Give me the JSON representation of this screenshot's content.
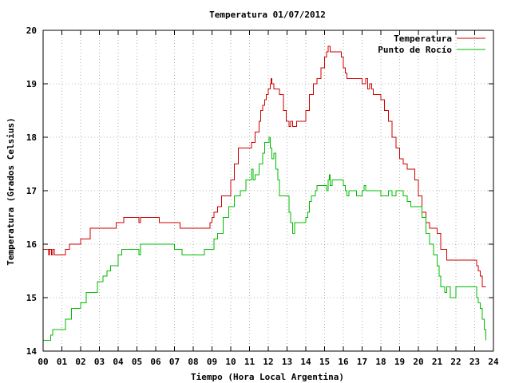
{
  "chart_data": {
    "type": "line",
    "title": "Temperatura 01/07/2012",
    "xlabel": "Tiempo (Hora Local Argentina)",
    "ylabel": "Temperatura (Grados Celsius)",
    "xlim": [
      0,
      24
    ],
    "ylim": [
      14,
      20
    ],
    "grid": true,
    "legend_position": "top-right",
    "x_ticks": [
      "00",
      "01",
      "02",
      "03",
      "04",
      "05",
      "06",
      "07",
      "08",
      "09",
      "10",
      "11",
      "12",
      "13",
      "14",
      "15",
      "16",
      "17",
      "18",
      "19",
      "20",
      "21",
      "22",
      "23",
      "24"
    ],
    "y_ticks": [
      "14",
      "15",
      "16",
      "17",
      "18",
      "19",
      "20"
    ],
    "series": [
      {
        "name": "Temperatura",
        "color": "#cc0000",
        "x": [
          0,
          0.3,
          0.35,
          0.45,
          0.5,
          0.6,
          0.65,
          1.0,
          1.2,
          1.4,
          2.0,
          2.5,
          3.0,
          3.5,
          3.9,
          4.3,
          5.0,
          5.1,
          5.2,
          5.7,
          6.2,
          6.5,
          7.0,
          7.3,
          8.0,
          8.6,
          8.9,
          9.0,
          9.1,
          9.3,
          9.5,
          9.8,
          10.0,
          10.2,
          10.4,
          10.6,
          10.9,
          11.1,
          11.3,
          11.5,
          11.6,
          11.7,
          11.8,
          11.9,
          12.0,
          12.1,
          12.15,
          12.2,
          12.3,
          12.4,
          12.6,
          12.8,
          12.95,
          13.1,
          13.2,
          13.3,
          13.4,
          13.5,
          13.8,
          14.0,
          14.2,
          14.4,
          14.6,
          14.8,
          15.0,
          15.1,
          15.2,
          15.3,
          15.4,
          15.5,
          15.7,
          15.9,
          16.0,
          16.1,
          16.2,
          16.4,
          16.6,
          16.8,
          17.0,
          17.1,
          17.2,
          17.3,
          17.4,
          17.5,
          17.6,
          17.8,
          18.0,
          18.2,
          18.4,
          18.6,
          18.8,
          19.0,
          19.2,
          19.4,
          19.6,
          19.8,
          20.0,
          20.2,
          20.4,
          20.6,
          20.8,
          21.0,
          21.2,
          21.5,
          22.0,
          22.5,
          23.0,
          23.1,
          23.2,
          23.3,
          23.4,
          23.6
        ],
        "y": [
          15.9,
          15.8,
          15.9,
          15.8,
          15.9,
          15.8,
          15.8,
          15.8,
          15.9,
          16.0,
          16.1,
          16.3,
          16.3,
          16.3,
          16.4,
          16.5,
          16.5,
          16.4,
          16.5,
          16.5,
          16.4,
          16.4,
          16.4,
          16.3,
          16.3,
          16.3,
          16.4,
          16.5,
          16.6,
          16.7,
          16.9,
          16.9,
          17.2,
          17.5,
          17.8,
          17.8,
          17.8,
          17.9,
          18.1,
          18.3,
          18.5,
          18.6,
          18.7,
          18.8,
          18.9,
          19.0,
          19.1,
          19.0,
          18.9,
          18.9,
          18.8,
          18.5,
          18.3,
          18.2,
          18.3,
          18.2,
          18.2,
          18.3,
          18.3,
          18.5,
          18.8,
          19.0,
          19.1,
          19.3,
          19.5,
          19.6,
          19.7,
          19.6,
          19.6,
          19.6,
          19.6,
          19.5,
          19.3,
          19.2,
          19.1,
          19.1,
          19.1,
          19.1,
          19.0,
          19.0,
          19.1,
          18.9,
          19.0,
          18.9,
          18.8,
          18.8,
          18.7,
          18.5,
          18.3,
          18.0,
          17.8,
          17.6,
          17.5,
          17.4,
          17.4,
          17.2,
          16.9,
          16.6,
          16.4,
          16.3,
          16.3,
          16.2,
          15.9,
          15.7,
          15.7,
          15.7,
          15.7,
          15.6,
          15.5,
          15.4,
          15.2,
          15.2
        ]
      },
      {
        "name": "Punto de Rocío",
        "color": "#00bb00",
        "x": [
          0,
          0.3,
          0.4,
          0.5,
          1.0,
          1.2,
          1.5,
          1.8,
          2.0,
          2.3,
          2.6,
          2.9,
          3.2,
          3.4,
          3.6,
          3.8,
          4.0,
          4.2,
          4.5,
          5.0,
          5.1,
          5.2,
          5.5,
          6.0,
          6.5,
          7.0,
          7.4,
          7.8,
          8.2,
          8.6,
          8.9,
          9.1,
          9.3,
          9.6,
          9.9,
          10.2,
          10.5,
          10.8,
          11.0,
          11.1,
          11.2,
          11.3,
          11.5,
          11.7,
          11.8,
          11.9,
          12.0,
          12.05,
          12.1,
          12.2,
          12.3,
          12.4,
          12.5,
          12.6,
          12.8,
          13.0,
          13.1,
          13.2,
          13.3,
          13.4,
          13.6,
          13.8,
          14.0,
          14.1,
          14.2,
          14.3,
          14.4,
          14.5,
          14.6,
          14.8,
          15.0,
          15.1,
          15.2,
          15.25,
          15.3,
          15.4,
          15.6,
          15.8,
          16.0,
          16.1,
          16.2,
          16.3,
          16.5,
          16.7,
          16.9,
          17.0,
          17.1,
          17.2,
          17.3,
          17.5,
          17.8,
          18.0,
          18.2,
          18.4,
          18.6,
          18.8,
          19.0,
          19.2,
          19.4,
          19.6,
          19.8,
          20.0,
          20.2,
          20.4,
          20.6,
          20.8,
          21.0,
          21.1,
          21.2,
          21.4,
          21.5,
          21.7,
          22.0,
          22.5,
          23.0,
          23.1,
          23.2,
          23.3,
          23.4,
          23.5,
          23.6
        ],
        "y": [
          14.2,
          14.2,
          14.3,
          14.4,
          14.4,
          14.6,
          14.8,
          14.8,
          14.9,
          15.1,
          15.1,
          15.3,
          15.4,
          15.5,
          15.6,
          15.6,
          15.8,
          15.9,
          15.9,
          15.9,
          15.8,
          16.0,
          16.0,
          16.0,
          16.0,
          15.9,
          15.8,
          15.8,
          15.8,
          15.9,
          15.9,
          16.1,
          16.2,
          16.5,
          16.7,
          16.9,
          17.0,
          17.2,
          17.2,
          17.4,
          17.2,
          17.3,
          17.5,
          17.7,
          17.9,
          17.9,
          17.9,
          18.0,
          17.8,
          17.6,
          17.7,
          17.4,
          17.2,
          16.9,
          16.9,
          16.9,
          16.6,
          16.4,
          16.2,
          16.4,
          16.4,
          16.4,
          16.5,
          16.6,
          16.8,
          16.9,
          16.9,
          17.0,
          17.1,
          17.1,
          17.1,
          17.0,
          17.2,
          17.3,
          17.1,
          17.2,
          17.2,
          17.2,
          17.1,
          17.0,
          16.9,
          17.0,
          17.0,
          16.9,
          16.9,
          17.0,
          17.1,
          17.0,
          17.0,
          17.0,
          17.0,
          16.9,
          16.9,
          17.0,
          16.9,
          17.0,
          17.0,
          16.9,
          16.8,
          16.7,
          16.7,
          16.7,
          16.5,
          16.2,
          16.0,
          15.8,
          15.6,
          15.4,
          15.2,
          15.1,
          15.2,
          15.0,
          15.2,
          15.2,
          15.2,
          15.0,
          14.9,
          14.8,
          14.6,
          14.4,
          14.2
        ]
      }
    ]
  }
}
